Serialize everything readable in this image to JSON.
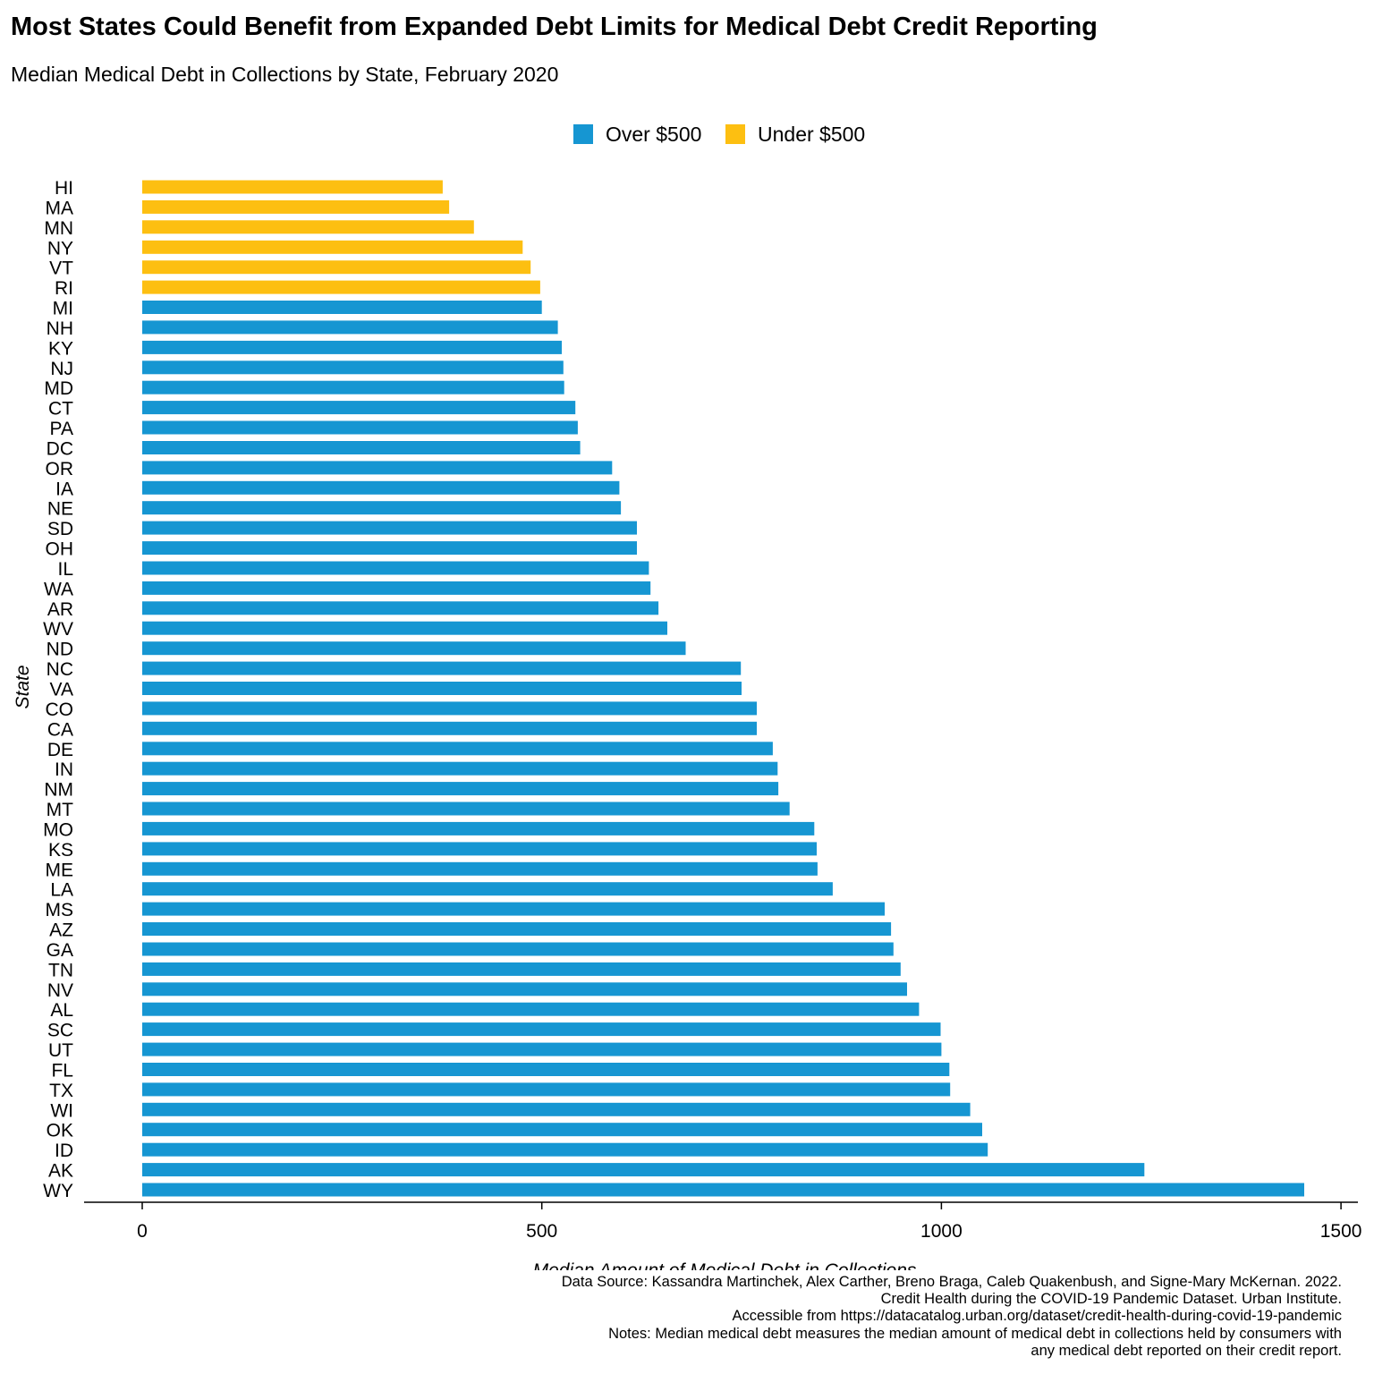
{
  "title": "Most States Could Benefit from Expanded Debt Limits for Medical Debt Credit Reporting",
  "subtitle": "Median Medical Debt in Collections by State, February 2020",
  "caption": [
    "Data Source: Kassandra Martinchek, Alex Carther, Breno Braga, Caleb Quakenbush, and Signe-Mary McKernan. 2022.",
    "Credit Health during the COVID-19 Pandemic Dataset. Urban Institute.",
    "Accessible from https://datacatalog.urban.org/dataset/credit-health-during-covid-19-pandemic",
    "Notes: Median medical debt measures the median amount of medical debt in collections held by consumers with",
    "any medical debt reported on their credit report."
  ],
  "colors": {
    "over": "#1696d2",
    "under": "#fdbf11"
  },
  "chart_data": {
    "type": "bar",
    "orientation": "horizontal",
    "title": "Most States Could Benefit from Expanded Debt Limits for Medical Debt Credit Reporting",
    "subtitle": "Median Medical Debt in Collections by State, February 2020",
    "xlabel": "Median Amount of Medical Debt in Collections",
    "ylabel": "State",
    "xlim": [
      -72,
      1530
    ],
    "xticks": [
      0,
      500,
      1000,
      1500
    ],
    "grid": false,
    "legend": {
      "position": "top",
      "entries": [
        {
          "label": "Over $500",
          "color": "#1696d2"
        },
        {
          "label": "Under $500",
          "color": "#fdbf11"
        }
      ]
    },
    "categories": [
      "HI",
      "MA",
      "MN",
      "NY",
      "VT",
      "RI",
      "MI",
      "NH",
      "KY",
      "NJ",
      "MD",
      "CT",
      "PA",
      "DC",
      "OR",
      "IA",
      "NE",
      "SD",
      "OH",
      "IL",
      "WA",
      "AR",
      "WV",
      "ND",
      "NC",
      "VA",
      "CO",
      "CA",
      "DE",
      "IN",
      "NM",
      "MT",
      "MO",
      "KS",
      "ME",
      "LA",
      "MS",
      "AZ",
      "GA",
      "TN",
      "NV",
      "AL",
      "SC",
      "UT",
      "FL",
      "TX",
      "WI",
      "OK",
      "ID",
      "AK",
      "WY"
    ],
    "values": [
      376,
      384,
      415,
      476,
      486,
      498,
      500,
      520,
      525,
      527,
      528,
      542,
      545,
      548,
      588,
      597,
      599,
      619,
      619,
      634,
      636,
      646,
      657,
      680,
      749,
      750,
      769,
      769,
      789,
      795,
      796,
      810,
      841,
      844,
      845,
      864,
      929,
      937,
      940,
      949,
      957,
      972,
      999,
      1000,
      1010,
      1011,
      1036,
      1051,
      1058,
      1254,
      1454
    ],
    "groups": [
      "Under $500",
      "Under $500",
      "Under $500",
      "Under $500",
      "Under $500",
      "Under $500",
      "Over $500",
      "Over $500",
      "Over $500",
      "Over $500",
      "Over $500",
      "Over $500",
      "Over $500",
      "Over $500",
      "Over $500",
      "Over $500",
      "Over $500",
      "Over $500",
      "Over $500",
      "Over $500",
      "Over $500",
      "Over $500",
      "Over $500",
      "Over $500",
      "Over $500",
      "Over $500",
      "Over $500",
      "Over $500",
      "Over $500",
      "Over $500",
      "Over $500",
      "Over $500",
      "Over $500",
      "Over $500",
      "Over $500",
      "Over $500",
      "Over $500",
      "Over $500",
      "Over $500",
      "Over $500",
      "Over $500",
      "Over $500",
      "Over $500",
      "Over $500",
      "Over $500",
      "Over $500",
      "Over $500",
      "Over $500",
      "Over $500",
      "Over $500",
      "Over $500"
    ]
  }
}
